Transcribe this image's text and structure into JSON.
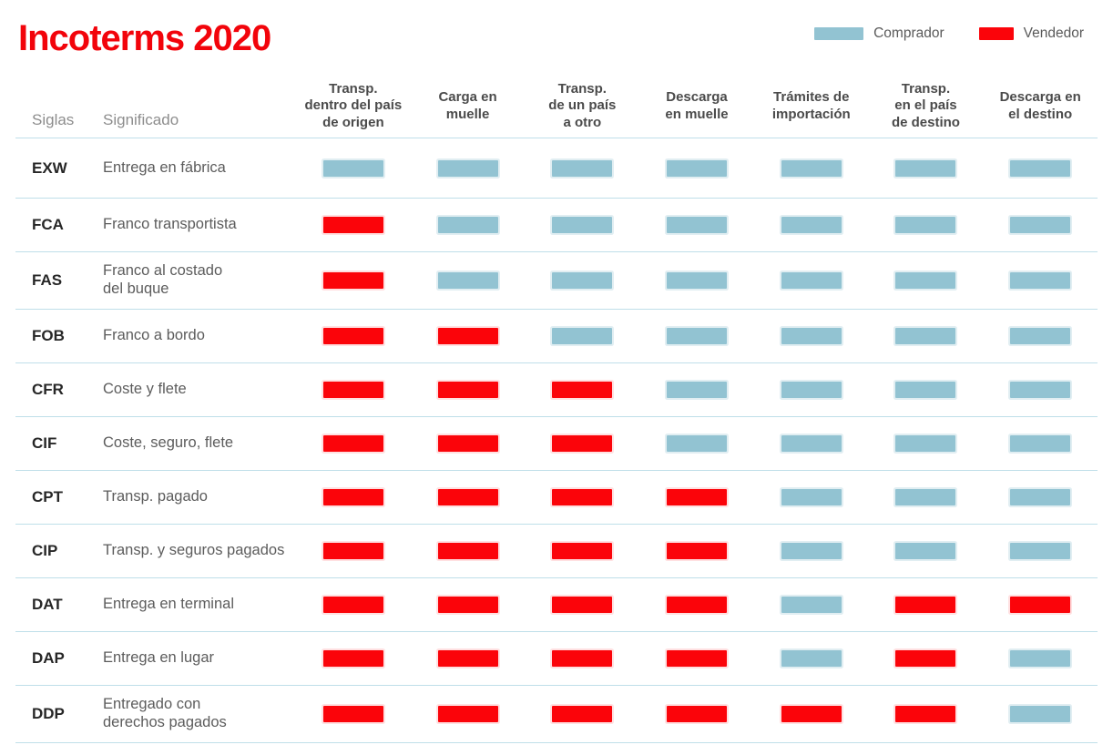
{
  "title": "Incoterms 2020",
  "colors": {
    "title_red": "#f2040b",
    "comprador": "#92c3d2",
    "vendedor": "#fb040a",
    "divider": "#bfdfe9"
  },
  "legend": {
    "comprador_label": "Comprador",
    "vendedor_label": "Vendedor"
  },
  "columns": {
    "siglas": "Siglas",
    "significado": "Significado"
  },
  "chart_data": {
    "type": "table",
    "title": "Incoterms 2020",
    "legend": [
      {
        "label": "Comprador",
        "color": "#92c3d2"
      },
      {
        "label": "Vendedor",
        "color": "#fb040a"
      }
    ],
    "row_header_columns": [
      "Siglas",
      "Significado"
    ],
    "stage_columns": [
      "Transp.\ndentro del país\nde origen",
      "Carga en\nmuelle",
      "Transp.\nde un país\na otro",
      "Descarga\nen muelle",
      "Trámites de\nimportación",
      "Transp.\nen el país\nde destino",
      "Descarga en\nel destino"
    ],
    "rows": [
      {
        "code": "EXW",
        "meaning": "Entrega en fábrica",
        "stages": [
          "comprador",
          "comprador",
          "comprador",
          "comprador",
          "comprador",
          "comprador",
          "comprador"
        ]
      },
      {
        "code": "FCA",
        "meaning": "Franco transportista",
        "stages": [
          "vendedor",
          "comprador",
          "comprador",
          "comprador",
          "comprador",
          "comprador",
          "comprador"
        ]
      },
      {
        "code": "FAS",
        "meaning": "Franco al costado\ndel buque",
        "stages": [
          "vendedor",
          "comprador",
          "comprador",
          "comprador",
          "comprador",
          "comprador",
          "comprador"
        ]
      },
      {
        "code": "FOB",
        "meaning": "Franco a bordo",
        "stages": [
          "vendedor",
          "vendedor",
          "comprador",
          "comprador",
          "comprador",
          "comprador",
          "comprador"
        ]
      },
      {
        "code": "CFR",
        "meaning": "Coste y flete",
        "stages": [
          "vendedor",
          "vendedor",
          "vendedor",
          "comprador",
          "comprador",
          "comprador",
          "comprador"
        ]
      },
      {
        "code": "CIF",
        "meaning": "Coste, seguro, flete",
        "stages": [
          "vendedor",
          "vendedor",
          "vendedor",
          "comprador",
          "comprador",
          "comprador",
          "comprador"
        ]
      },
      {
        "code": "CPT",
        "meaning": "Transp. pagado",
        "stages": [
          "vendedor",
          "vendedor",
          "vendedor",
          "vendedor",
          "comprador",
          "comprador",
          "comprador"
        ]
      },
      {
        "code": "CIP",
        "meaning": "Transp. y seguros pagados",
        "stages": [
          "vendedor",
          "vendedor",
          "vendedor",
          "vendedor",
          "comprador",
          "comprador",
          "comprador"
        ]
      },
      {
        "code": "DAT",
        "meaning": "Entrega en terminal",
        "stages": [
          "vendedor",
          "vendedor",
          "vendedor",
          "vendedor",
          "comprador",
          "vendedor",
          "vendedor"
        ]
      },
      {
        "code": "DAP",
        "meaning": "Entrega en lugar",
        "stages": [
          "vendedor",
          "vendedor",
          "vendedor",
          "vendedor",
          "comprador",
          "vendedor",
          "comprador"
        ]
      },
      {
        "code": "DDP",
        "meaning": "Entregado con\nderechos pagados",
        "stages": [
          "vendedor",
          "vendedor",
          "vendedor",
          "vendedor",
          "vendedor",
          "vendedor",
          "comprador"
        ]
      }
    ]
  }
}
